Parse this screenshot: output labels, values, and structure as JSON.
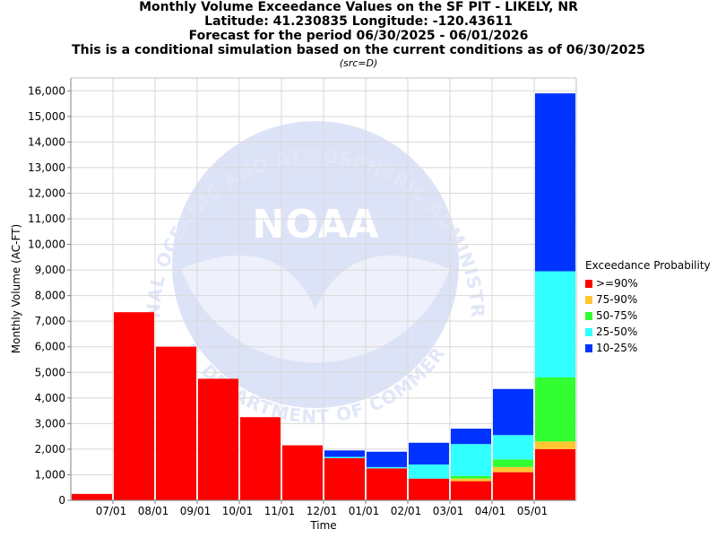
{
  "chart_data": {
    "type": "bar",
    "stacked": true,
    "title_lines": [
      "Monthly Volume Exceedance Values on the SF PIT - LIKELY, NR",
      "Latitude: 41.230835 Longitude: -120.43611",
      "Forecast for the period 06/30/2025 - 06/01/2026",
      "This is a conditional simulation based on the current conditions as of 06/30/2025"
    ],
    "subtitle": "(src=D)",
    "xlabel": "Time",
    "ylabel": "Monthly Volume (AC-FT)",
    "ylim": [
      0,
      16500
    ],
    "yticks": [
      0,
      1000,
      2000,
      3000,
      4000,
      5000,
      6000,
      7000,
      8000,
      9000,
      10000,
      11000,
      12000,
      13000,
      14000,
      15000,
      16000
    ],
    "ytick_labels": [
      "0",
      "1,000",
      "2,000",
      "3,000",
      "4,000",
      "5,000",
      "6,000",
      "7,000",
      "8,000",
      "9,000",
      "10,000",
      "11,000",
      "12,000",
      "13,000",
      "14,000",
      "15,000",
      "16,000"
    ],
    "xtick_labels": [
      "07/01",
      "08/01",
      "09/01",
      "10/01",
      "11/01",
      "12/01",
      "01/01",
      "02/01",
      "03/01",
      "04/01",
      "05/01"
    ],
    "bars": [
      {
        "period": "06/2025",
        "values": {
          ">=90%": 250,
          "75-90%": 250,
          "50-75%": 250,
          "25-50%": 250,
          "10-25%": 250
        }
      },
      {
        "period": "07/2025",
        "values": {
          ">=90%": 7350,
          "75-90%": 7350,
          "50-75%": 7350,
          "25-50%": 7350,
          "10-25%": 7350
        }
      },
      {
        "period": "08/2025",
        "values": {
          ">=90%": 6000,
          "75-90%": 6000,
          "50-75%": 6000,
          "25-50%": 6000,
          "10-25%": 6000
        }
      },
      {
        "period": "09/2025",
        "values": {
          ">=90%": 4750,
          "75-90%": 4750,
          "50-75%": 4750,
          "25-50%": 4750,
          "10-25%": 4750
        }
      },
      {
        "period": "10/2025",
        "values": {
          ">=90%": 3250,
          "75-90%": 3250,
          "50-75%": 3250,
          "25-50%": 3250,
          "10-25%": 3250
        }
      },
      {
        "period": "11/2025",
        "values": {
          ">=90%": 2150,
          "75-90%": 2150,
          "50-75%": 2150,
          "25-50%": 2150,
          "10-25%": 2150
        }
      },
      {
        "period": "12/2025",
        "values": {
          ">=90%": 1650,
          "75-90%": 1650,
          "50-75%": 1650,
          "25-50%": 1700,
          "10-25%": 1950
        }
      },
      {
        "period": "01/2026",
        "values": {
          ">=90%": 1250,
          "75-90%": 1250,
          "50-75%": 1250,
          "25-50%": 1300,
          "10-25%": 1900
        }
      },
      {
        "period": "02/2026",
        "values": {
          ">=90%": 850,
          "75-90%": 850,
          "50-75%": 850,
          "25-50%": 1400,
          "10-25%": 2250
        }
      },
      {
        "period": "03/2026",
        "values": {
          ">=90%": 750,
          "75-90%": 850,
          "50-75%": 950,
          "25-50%": 2200,
          "10-25%": 2800
        }
      },
      {
        "period": "04/2026",
        "values": {
          ">=90%": 1100,
          "75-90%": 1300,
          "50-75%": 1600,
          "25-50%": 2550,
          "10-25%": 4350
        }
      },
      {
        "period": "05/2026",
        "values": {
          ">=90%": 2000,
          "75-90%": 2300,
          "50-75%": 4800,
          "25-50%": 8950,
          "10-25%": 15900
        }
      }
    ],
    "legend": {
      "title": "Exceedance Probability",
      "placement": "right",
      "entries": [
        {
          "key": ">=90%",
          "label": ">=90%",
          "color": "#ff0000"
        },
        {
          "key": "75-90%",
          "label": "75-90%",
          "color": "#ffc832"
        },
        {
          "key": "50-75%",
          "label": "50-75%",
          "color": "#32ff32"
        },
        {
          "key": "25-50%",
          "label": "25-50%",
          "color": "#32ffff"
        },
        {
          "key": "10-25%",
          "label": "10-25%",
          "color": "#0033ff"
        }
      ]
    },
    "grid": true,
    "watermark": {
      "text": "NOAA",
      "ring_text": "NATIONAL OCEANIC AND ATMOSPHERIC ADMINISTRATION",
      "bottom_text": "U.S. DEPARTMENT OF COMMERCE"
    }
  }
}
